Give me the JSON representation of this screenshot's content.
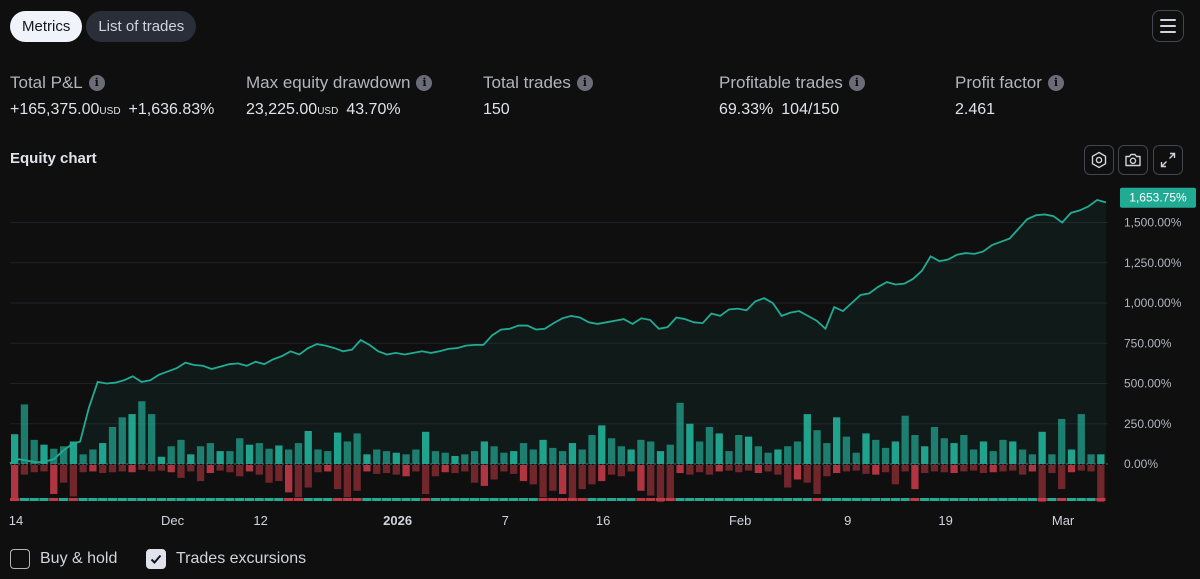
{
  "tabs": [
    {
      "label": "Metrics",
      "active": true
    },
    {
      "label": "List of trades",
      "active": false
    }
  ],
  "menu_icon": "hamburger-icon",
  "metrics": {
    "total_pnl": {
      "label": "Total P&L",
      "value": "+165,375.00",
      "unit": "USD",
      "percent": "+1,636.83%"
    },
    "max_drawdown": {
      "label": "Max equity drawdown",
      "value": "23,225.00",
      "unit": "USD",
      "percent": "43.70%"
    },
    "total_trades": {
      "label": "Total trades",
      "value": "150"
    },
    "profitable_trades": {
      "label": "Profitable trades",
      "percent": "69.33%",
      "ratio": "104/150"
    },
    "profit_factor": {
      "label": "Profit factor",
      "value": "2.461"
    }
  },
  "info_glyph": "i",
  "equity_chart_title": "Equity chart",
  "toolbar_icons": [
    "settings-icon",
    "camera-icon",
    "fullscreen-icon"
  ],
  "colors": {
    "accent_green": "#22ab94",
    "loss_red": "#c23a46",
    "background": "#0f0f0f"
  },
  "footer": {
    "buy_hold_label": "Buy & hold",
    "buy_hold_checked": false,
    "excursions_label": "Trades excursions",
    "excursions_checked": true
  },
  "chart_data": {
    "type": "line",
    "y_axis_labels": [
      "1,500.00%",
      "1,250.00%",
      "1,000.00%",
      "750.00%",
      "500.00%",
      "250.00%",
      "0.00%"
    ],
    "y_ticks": [
      1500,
      1250,
      1000,
      750,
      500,
      250,
      0
    ],
    "ylim": [
      -150,
      1630
    ],
    "last_value_label": "1,653.75%",
    "last_value": 1653.75,
    "x_tick_labels": [
      "14",
      "Dec",
      "12",
      "2026",
      "7",
      "16",
      "Feb",
      "9",
      "19",
      "Mar"
    ],
    "x_tick_index": [
      0,
      16,
      25,
      39,
      50,
      60,
      74,
      85,
      95,
      107
    ],
    "series": [
      {
        "values": [
          5,
          30,
          20,
          10,
          15,
          30,
          80,
          120,
          140,
          350,
          510,
          500,
          505,
          520,
          545,
          510,
          520,
          555,
          575,
          595,
          630,
          615,
          610,
          590,
          605,
          620,
          625,
          610,
          635,
          620,
          650,
          670,
          700,
          680,
          720,
          745,
          735,
          720,
          700,
          710,
          770,
          740,
          700,
          680,
          690,
          680,
          690,
          700,
          690,
          700,
          715,
          720,
          735,
          740,
          740,
          800,
          835,
          840,
          860,
          860,
          835,
          840,
          875,
          905,
          920,
          910,
          880,
          870,
          880,
          890,
          900,
          870,
          905,
          895,
          840,
          850,
          910,
          900,
          880,
          875,
          935,
          920,
          960,
          965,
          955,
          1010,
          1030,
          1000,
          920,
          940,
          950,
          920,
          890,
          840,
          975,
          950,
          1000,
          1050,
          1060,
          1100,
          1130,
          1115,
          1120,
          1150,
          1200,
          1290,
          1260,
          1270,
          1300,
          1310,
          1305,
          1320,
          1360,
          1380,
          1400,
          1460,
          1520,
          1545,
          1550,
          1540,
          1500,
          1560,
          1575,
          1600,
          1640,
          1625
        ]
      }
    ],
    "trade_excursions": [
      {
        "max_runup": 185,
        "drawdown": -210
      },
      {
        "max_runup": 370,
        "drawdown": -60
      },
      {
        "max_runup": 150,
        "drawdown": -45
      },
      {
        "max_runup": 120,
        "drawdown": -40
      },
      {
        "max_runup": 95,
        "drawdown": -180
      },
      {
        "max_runup": 110,
        "drawdown": -110
      },
      {
        "max_runup": 140,
        "drawdown": -195
      },
      {
        "max_runup": 60,
        "drawdown": -45
      },
      {
        "max_runup": 90,
        "drawdown": -40
      },
      {
        "max_runup": 130,
        "drawdown": -50
      },
      {
        "max_runup": 230,
        "drawdown": -45
      },
      {
        "max_runup": 290,
        "drawdown": -40
      },
      {
        "max_runup": 310,
        "drawdown": -45
      },
      {
        "max_runup": 390,
        "drawdown": -30
      },
      {
        "max_runup": 310,
        "drawdown": -40
      },
      {
        "max_runup": 45,
        "drawdown": -35
      },
      {
        "max_runup": 110,
        "drawdown": -45
      },
      {
        "max_runup": 150,
        "drawdown": -80
      },
      {
        "max_runup": 60,
        "drawdown": -40
      },
      {
        "max_runup": 110,
        "drawdown": -100
      },
      {
        "max_runup": 130,
        "drawdown": -50
      },
      {
        "max_runup": 80,
        "drawdown": -35
      },
      {
        "max_runup": 80,
        "drawdown": -45
      },
      {
        "max_runup": 160,
        "drawdown": -70
      },
      {
        "max_runup": 120,
        "drawdown": -40
      },
      {
        "max_runup": 130,
        "drawdown": -60
      },
      {
        "max_runup": 95,
        "drawdown": -110
      },
      {
        "max_runup": 115,
        "drawdown": -100
      },
      {
        "max_runup": 90,
        "drawdown": -170
      },
      {
        "max_runup": 130,
        "drawdown": -200
      },
      {
        "max_runup": 205,
        "drawdown": -140
      },
      {
        "max_runup": 90,
        "drawdown": -45
      },
      {
        "max_runup": 80,
        "drawdown": -40
      },
      {
        "max_runup": 195,
        "drawdown": -150
      },
      {
        "max_runup": 140,
        "drawdown": -200
      },
      {
        "max_runup": 190,
        "drawdown": -160
      },
      {
        "max_runup": 60,
        "drawdown": -40
      },
      {
        "max_runup": 90,
        "drawdown": -55
      },
      {
        "max_runup": 80,
        "drawdown": -50
      },
      {
        "max_runup": 70,
        "drawdown": -60
      },
      {
        "max_runup": 60,
        "drawdown": -70
      },
      {
        "max_runup": 90,
        "drawdown": -40
      },
      {
        "max_runup": 200,
        "drawdown": -180
      },
      {
        "max_runup": 80,
        "drawdown": -70
      },
      {
        "max_runup": 70,
        "drawdown": -45
      },
      {
        "max_runup": 50,
        "drawdown": -50
      },
      {
        "max_runup": 60,
        "drawdown": -40
      },
      {
        "max_runup": 80,
        "drawdown": -110
      },
      {
        "max_runup": 140,
        "drawdown": -130
      },
      {
        "max_runup": 110,
        "drawdown": -90
      },
      {
        "max_runup": 70,
        "drawdown": -40
      },
      {
        "max_runup": 80,
        "drawdown": -55
      },
      {
        "max_runup": 130,
        "drawdown": -100
      },
      {
        "max_runup": 90,
        "drawdown": -120
      },
      {
        "max_runup": 150,
        "drawdown": -200
      },
      {
        "max_runup": 100,
        "drawdown": -160
      },
      {
        "max_runup": 80,
        "drawdown": -180
      },
      {
        "max_runup": 130,
        "drawdown": -220
      },
      {
        "max_runup": 90,
        "drawdown": -150
      },
      {
        "max_runup": 180,
        "drawdown": -120
      },
      {
        "max_runup": 240,
        "drawdown": -100
      },
      {
        "max_runup": 160,
        "drawdown": -60
      },
      {
        "max_runup": 110,
        "drawdown": -70
      },
      {
        "max_runup": 90,
        "drawdown": -40
      },
      {
        "max_runup": 150,
        "drawdown": -160
      },
      {
        "max_runup": 140,
        "drawdown": -190
      },
      {
        "max_runup": 80,
        "drawdown": -230
      },
      {
        "max_runup": 120,
        "drawdown": -210
      },
      {
        "max_runup": 380,
        "drawdown": -50
      },
      {
        "max_runup": 250,
        "drawdown": -60
      },
      {
        "max_runup": 140,
        "drawdown": -45
      },
      {
        "max_runup": 230,
        "drawdown": -60
      },
      {
        "max_runup": 190,
        "drawdown": -40
      },
      {
        "max_runup": 80,
        "drawdown": -35
      },
      {
        "max_runup": 180,
        "drawdown": -45
      },
      {
        "max_runup": 170,
        "drawdown": -35
      },
      {
        "max_runup": 110,
        "drawdown": -50
      },
      {
        "max_runup": 70,
        "drawdown": -40
      },
      {
        "max_runup": 90,
        "drawdown": -60
      },
      {
        "max_runup": 110,
        "drawdown": -140
      },
      {
        "max_runup": 140,
        "drawdown": -90
      },
      {
        "max_runup": 310,
        "drawdown": -110
      },
      {
        "max_runup": 210,
        "drawdown": -180
      },
      {
        "max_runup": 130,
        "drawdown": -70
      },
      {
        "max_runup": 290,
        "drawdown": -50
      },
      {
        "max_runup": 170,
        "drawdown": -40
      },
      {
        "max_runup": 70,
        "drawdown": -35
      },
      {
        "max_runup": 190,
        "drawdown": -55
      },
      {
        "max_runup": 150,
        "drawdown": -60
      },
      {
        "max_runup": 100,
        "drawdown": -45
      },
      {
        "max_runup": 140,
        "drawdown": -120
      },
      {
        "max_runup": 300,
        "drawdown": -40
      },
      {
        "max_runup": 180,
        "drawdown": -150
      },
      {
        "max_runup": 110,
        "drawdown": -50
      },
      {
        "max_runup": 230,
        "drawdown": -40
      },
      {
        "max_runup": 160,
        "drawdown": -45
      },
      {
        "max_runup": 130,
        "drawdown": -50
      },
      {
        "max_runup": 180,
        "drawdown": -40
      },
      {
        "max_runup": 90,
        "drawdown": -35
      },
      {
        "max_runup": 140,
        "drawdown": -50
      },
      {
        "max_runup": 80,
        "drawdown": -45
      },
      {
        "max_runup": 150,
        "drawdown": -40
      },
      {
        "max_runup": 140,
        "drawdown": -35
      },
      {
        "max_runup": 90,
        "drawdown": -60
      },
      {
        "max_runup": 60,
        "drawdown": -40
      },
      {
        "max_runup": 200,
        "drawdown": -230
      },
      {
        "max_runup": 60,
        "drawdown": -50
      },
      {
        "max_runup": 280,
        "drawdown": -150
      },
      {
        "max_runup": 90,
        "drawdown": -45
      },
      {
        "max_runup": 310,
        "drawdown": -35
      },
      {
        "max_runup": 60,
        "drawdown": -40
      },
      {
        "max_runup": 60,
        "drawdown": -230
      }
    ],
    "grid": true
  }
}
